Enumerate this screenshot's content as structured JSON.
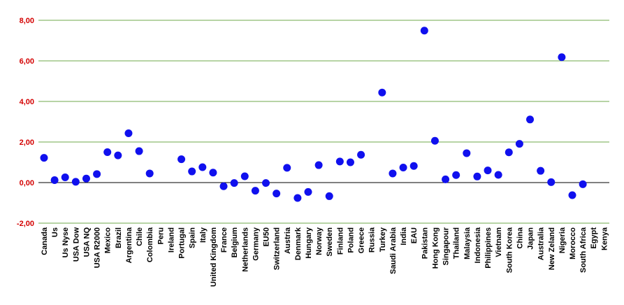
{
  "chart_data": {
    "type": "scatter",
    "title": "",
    "xlabel": "",
    "ylabel": "",
    "ylim": [
      -2,
      8
    ],
    "yticks": [
      "8,00",
      "6,00",
      "4,00",
      "2,00",
      "0,00",
      "-2,00"
    ],
    "ytick_values": [
      8,
      6,
      4,
      2,
      0,
      -2
    ],
    "grid": true,
    "legend": "none",
    "colors": {
      "points": "#1010ee",
      "gridlines": "#6fa84b",
      "ytick_labels": "#d40000",
      "zero_line": "#000000"
    },
    "categories": [
      "Canada",
      "Us",
      "Us Nyse",
      "USA Dow",
      "USA NQ",
      "USA R2000",
      "Mexico",
      "Brazil",
      "Argentina",
      "Chile",
      "Colombia",
      "Peru",
      "Ireland",
      "Portugal",
      "Spain",
      "Italy",
      "United Kingdom",
      "France",
      "Belgium",
      "Netherlands",
      "Germany",
      "EU50",
      "Switzerland",
      "Austria",
      "Denmark",
      "Hungary",
      "Norway",
      "Sweden",
      "Finland",
      "Poland",
      "Greece",
      "Russia",
      "Turkey",
      "Saudi Arabia",
      "India",
      "EAU",
      "Pakistan",
      "Hong Kong",
      "Singapour",
      "Thailand",
      "Malaysia",
      "Indonesia",
      "Philippines",
      "Vietnam",
      "South Korea",
      "China",
      "Japan",
      "Australia",
      "New Zeland",
      "Nigeria",
      "Morocco",
      "South Africa",
      "Egypt",
      "Kenya"
    ],
    "values": [
      1.22,
      0.12,
      0.26,
      0.04,
      0.2,
      0.42,
      1.5,
      1.34,
      2.43,
      1.55,
      0.45,
      null,
      null,
      1.15,
      0.55,
      0.76,
      0.49,
      -0.18,
      -0.02,
      0.31,
      -0.4,
      -0.02,
      -0.54,
      0.73,
      -0.76,
      -0.46,
      0.86,
      -0.67,
      1.04,
      1.0,
      1.37,
      null,
      4.44,
      0.45,
      0.74,
      0.82,
      7.49,
      2.06,
      0.16,
      0.37,
      1.45,
      0.3,
      0.6,
      0.38,
      1.49,
      1.91,
      3.11,
      0.58,
      0.02,
      6.18,
      -0.62,
      -0.08,
      null,
      null
    ]
  }
}
